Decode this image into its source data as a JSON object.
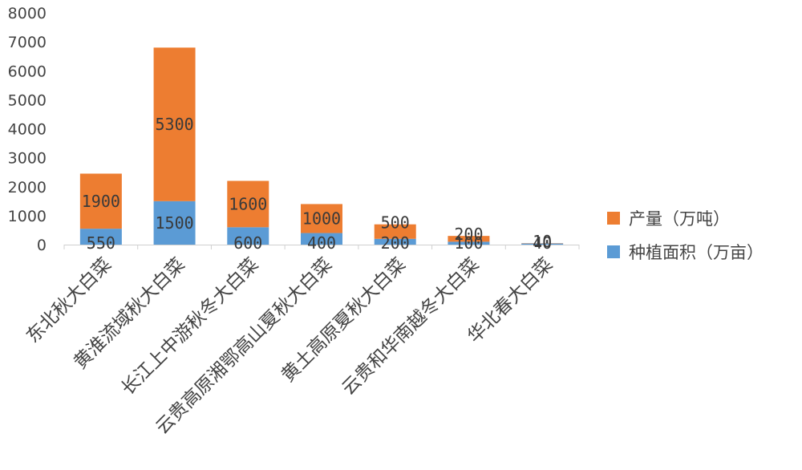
{
  "chart_data": {
    "type": "bar",
    "stacked": true,
    "categories": [
      "东北秋大白菜",
      "黄淮流域秋大白菜",
      "长江上中游秋冬大白菜",
      "云贵高原湘鄂高山夏秋大白菜",
      "黄土高原夏秋大白菜",
      "云贵和华南越冬大白菜",
      "华北春大白菜"
    ],
    "series": [
      {
        "name": "种植面积（万亩）",
        "color": "#5b9bd5",
        "values": [
          550,
          1500,
          600,
          400,
          200,
          100,
          40
        ]
      },
      {
        "name": "产量（万吨）",
        "color": "#ed7d31",
        "values": [
          1900,
          5300,
          1600,
          1000,
          500,
          200,
          10
        ]
      }
    ],
    "ylim": [
      0,
      8000
    ],
    "yticks": [
      0,
      1000,
      2000,
      3000,
      4000,
      5000,
      6000,
      7000,
      8000
    ],
    "legend_position": "right",
    "grid": false
  }
}
